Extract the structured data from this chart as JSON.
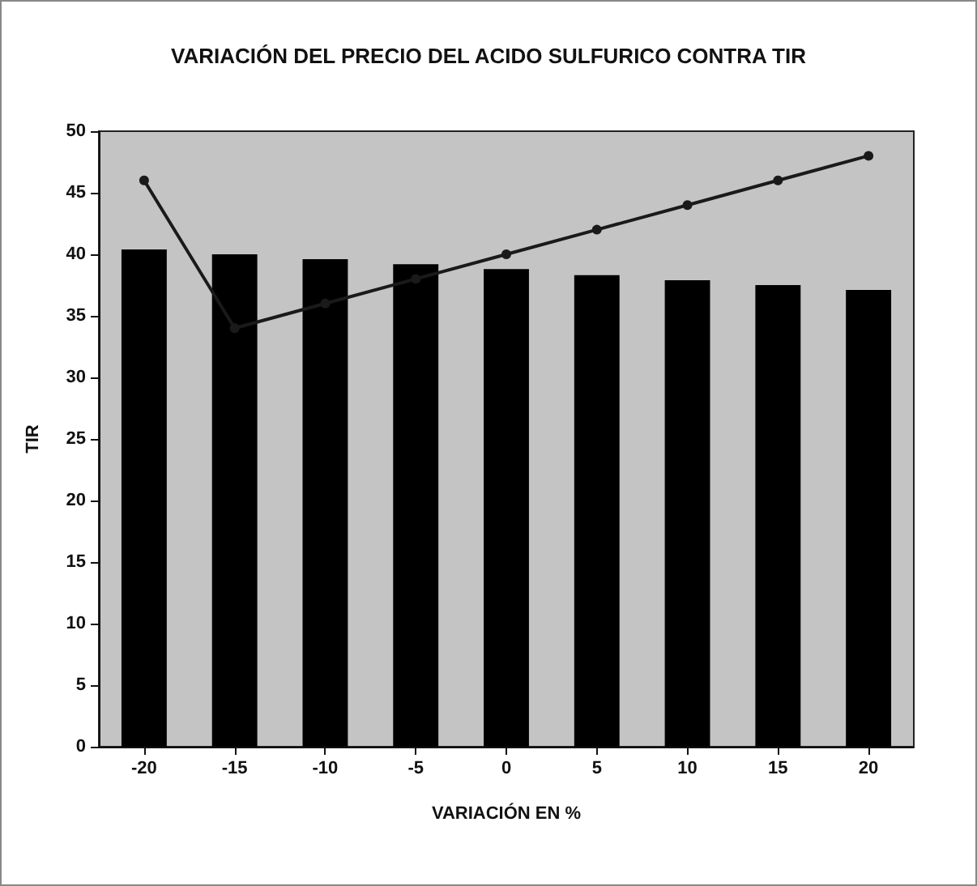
{
  "chart_data": {
    "type": "bar",
    "title": "VARIACIÓN DEL PRECIO DEL ACIDO SULFURICO CONTRA TIR",
    "xlabel": "VARIACIÓN EN %",
    "ylabel": "TIR",
    "categories": [
      "-20",
      "-15",
      "-10",
      "-5",
      "0",
      "5",
      "10",
      "15",
      "20"
    ],
    "series": [
      {
        "color": "#000000",
        "values": [
          40.4,
          40,
          39.6,
          39.2,
          38.8,
          38.3,
          37.9,
          37.5,
          37.1
        ]
      },
      {
        "type": "line",
        "color": "#1a1a1a",
        "marker": "circle",
        "values": [
          46,
          34,
          36,
          38,
          40,
          42,
          44,
          46,
          48
        ]
      }
    ],
    "ylim": [
      0,
      50
    ],
    "yticks": [
      0,
      5,
      10,
      15,
      20,
      25,
      30,
      35,
      40,
      45,
      50
    ],
    "grid": false
  }
}
